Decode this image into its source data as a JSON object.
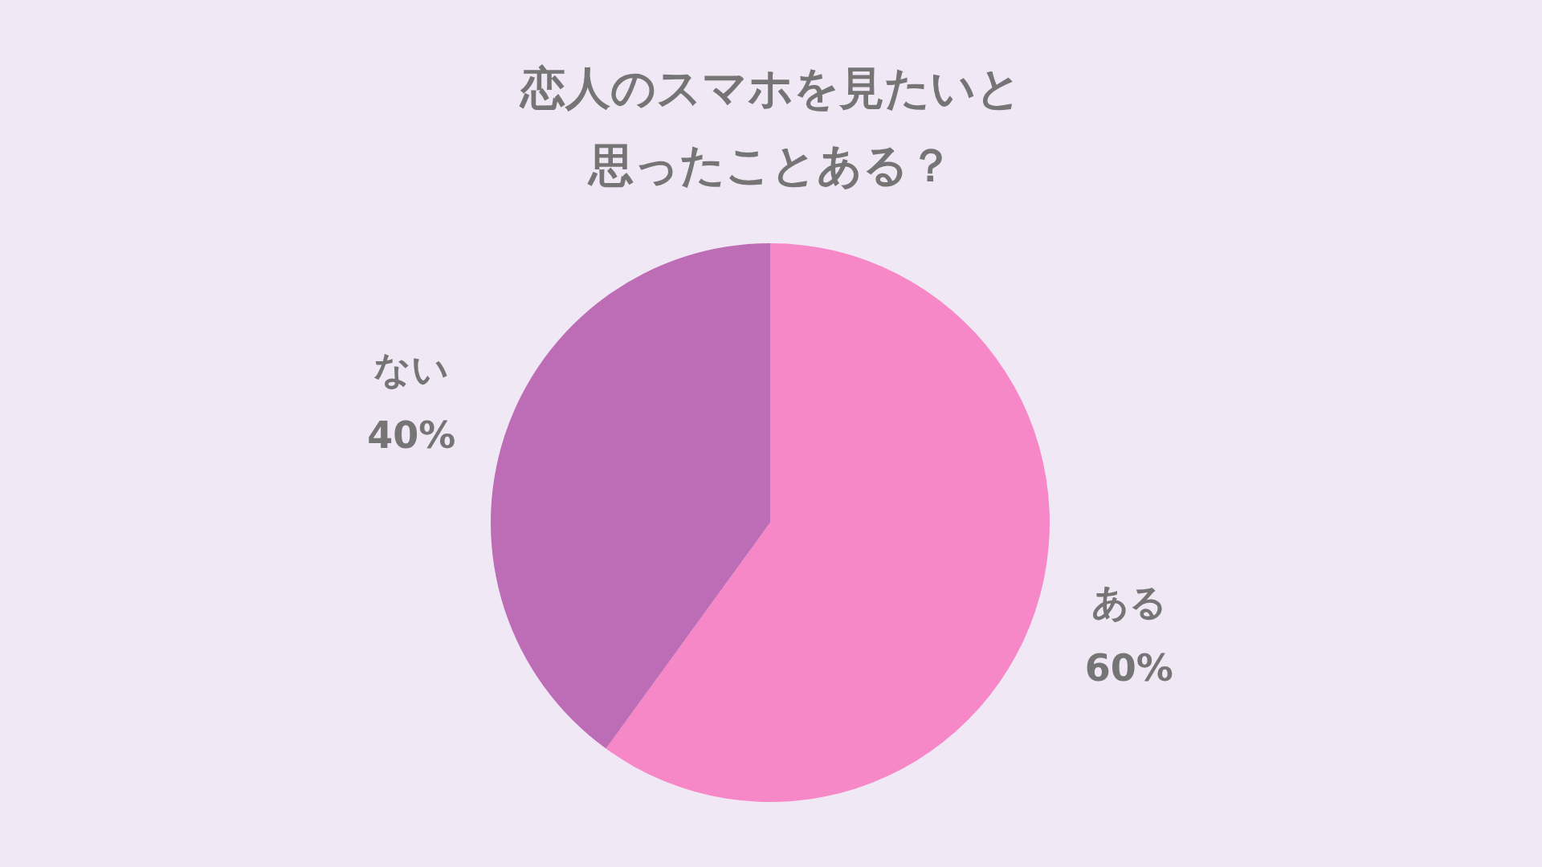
{
  "chart_data": {
    "type": "pie",
    "title": "恋人のスマホを見たいと思ったことある？",
    "categories": [
      "ある",
      "ない"
    ],
    "values": [
      60,
      40
    ],
    "value_labels": [
      "60%",
      "40%"
    ],
    "colors": [
      "#f788c8",
      "#bd6db5"
    ],
    "legend": false
  }
}
